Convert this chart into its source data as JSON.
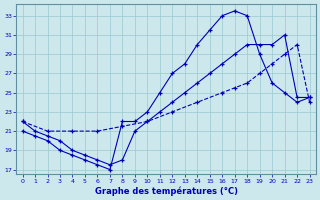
{
  "xlabel": "Graphe des températures (°C)",
  "bg_color": "#cce8ec",
  "grid_color": "#9ac8d0",
  "line_color": "#0000bb",
  "spine_color": "#6090a0",
  "xlim_min": -0.5,
  "xlim_max": 23.5,
  "ylim_min": 16.5,
  "ylim_max": 34.2,
  "yticks": [
    17,
    19,
    21,
    23,
    25,
    27,
    29,
    31,
    33
  ],
  "xticks": [
    0,
    1,
    2,
    3,
    4,
    5,
    6,
    7,
    8,
    9,
    10,
    11,
    12,
    13,
    14,
    15,
    16,
    17,
    18,
    19,
    20,
    21,
    22,
    23
  ],
  "series": [
    {
      "x": [
        0,
        1,
        2,
        3,
        4,
        5,
        6,
        7,
        8,
        9,
        10,
        11,
        12,
        13,
        14,
        15,
        16,
        17,
        18,
        19,
        20,
        21,
        22,
        23
      ],
      "y": [
        21,
        20.5,
        20,
        19,
        18.5,
        18,
        17.5,
        17,
        22,
        22,
        23,
        25,
        27,
        28,
        30,
        31.5,
        33,
        33.5,
        33,
        29,
        26,
        25,
        24,
        24.5
      ]
    },
    {
      "x": [
        0,
        2,
        4,
        6,
        8,
        10,
        12,
        14,
        16,
        17,
        18,
        19,
        20,
        21,
        22,
        23
      ],
      "y": [
        22,
        21,
        21,
        21,
        21.5,
        22,
        23,
        24,
        25,
        25.5,
        26,
        27,
        28,
        29,
        30,
        24
      ]
    },
    {
      "x": [
        0,
        1,
        2,
        3,
        4,
        5,
        6,
        7,
        8,
        9,
        10,
        11,
        12,
        13,
        14,
        15,
        16,
        17,
        18,
        19,
        20,
        21,
        22,
        23
      ],
      "y": [
        22,
        21,
        20.5,
        20,
        19,
        18.5,
        18,
        17.5,
        18,
        21,
        22,
        23,
        24,
        25,
        26,
        27,
        28,
        29,
        30,
        30,
        30,
        31,
        24.5,
        24.5
      ]
    }
  ]
}
